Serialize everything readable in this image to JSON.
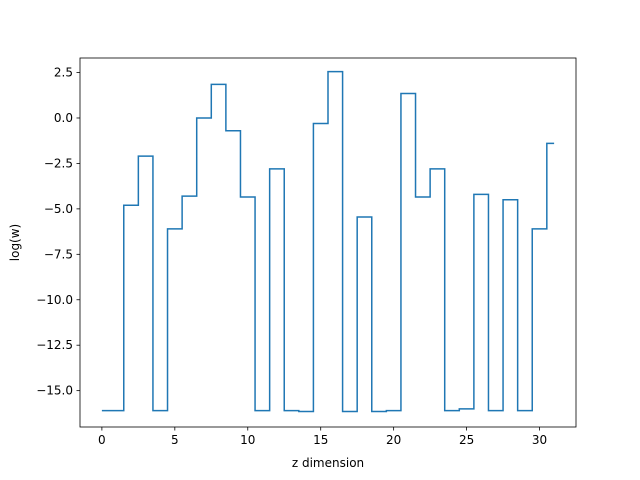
{
  "chart_data": {
    "type": "line",
    "drawstyle": "steps-mid",
    "title": "",
    "xlabel": "z dimension",
    "ylabel": "log(w)",
    "xlim": [
      -1.5,
      32.5
    ],
    "ylim": [
      -17.0,
      3.3
    ],
    "xticks": [
      0,
      5,
      10,
      15,
      20,
      25,
      30
    ],
    "xtick_labels": [
      "0",
      "5",
      "10",
      "15",
      "20",
      "25",
      "30"
    ],
    "yticks": [
      2.5,
      0.0,
      -2.5,
      -5.0,
      -7.5,
      -10.0,
      -12.5,
      -15.0
    ],
    "ytick_labels": [
      "2.5",
      "0.0",
      "−2.5",
      "−5.0",
      "−7.5",
      "−10.0",
      "−12.5",
      "−15.0"
    ],
    "grid": false,
    "legend": false,
    "line_color": "#1f77b4",
    "x": [
      0,
      1,
      2,
      3,
      4,
      5,
      6,
      7,
      8,
      9,
      10,
      11,
      12,
      13,
      14,
      15,
      16,
      17,
      18,
      19,
      20,
      21,
      22,
      23,
      24,
      25,
      26,
      27,
      28,
      29,
      30,
      31
    ],
    "y": [
      -16.1,
      -16.1,
      -4.8,
      -2.1,
      -16.1,
      -6.1,
      -4.3,
      0.0,
      1.85,
      -0.7,
      -4.35,
      -16.1,
      -2.8,
      -16.1,
      -16.15,
      -0.3,
      2.55,
      -16.15,
      -5.45,
      -16.15,
      -16.1,
      1.35,
      -4.35,
      -2.8,
      -16.1,
      -16.0,
      -4.2,
      -16.1,
      -4.5,
      -16.1,
      -6.1,
      -1.4
    ]
  }
}
